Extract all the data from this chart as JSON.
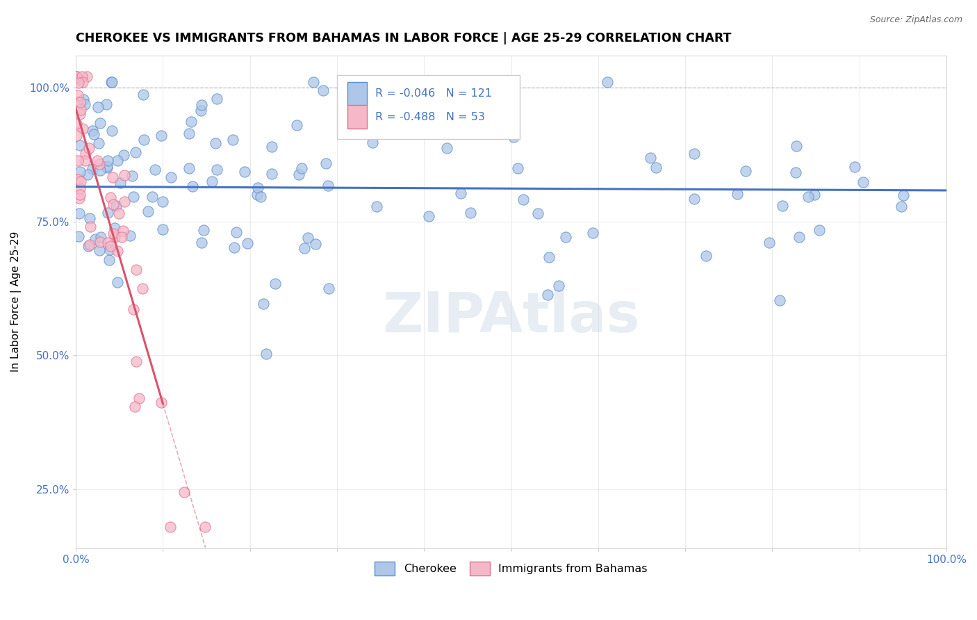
{
  "title": "CHEROKEE VS IMMIGRANTS FROM BAHAMAS IN LABOR FORCE | AGE 25-29 CORRELATION CHART",
  "source": "Source: ZipAtlas.com",
  "ylabel": "In Labor Force | Age 25-29",
  "xlim": [
    0.0,
    1.0
  ],
  "ylim": [
    0.14,
    1.06
  ],
  "xticks": [
    0.0,
    0.1,
    0.2,
    0.3,
    0.4,
    0.5,
    0.6,
    0.7,
    0.8,
    0.9,
    1.0
  ],
  "xticklabels": [
    "0.0%",
    "",
    "",
    "",
    "",
    "",
    "",
    "",
    "",
    "",
    "100.0%"
  ],
  "yticks": [
    0.25,
    0.5,
    0.75,
    1.0
  ],
  "yticklabels": [
    "25.0%",
    "50.0%",
    "75.0%",
    "100.0%"
  ],
  "blue_R": -0.046,
  "blue_N": 121,
  "pink_R": -0.488,
  "pink_N": 53,
  "blue_color": "#aec6e8",
  "pink_color": "#f5b8c8",
  "blue_edge_color": "#5b8fc9",
  "pink_edge_color": "#e07090",
  "blue_line_color": "#4472c4",
  "pink_line_color": "#d9546c",
  "legend_blue_label": "Cherokee",
  "legend_pink_label": "Immigrants from Bahamas",
  "watermark_text": "ZIPAtlas",
  "dot_size": 120,
  "blue_trend_intercept": 0.815,
  "blue_trend_slope": -0.007,
  "pink_trend_intercept": 0.96,
  "pink_trend_slope": -5.5
}
